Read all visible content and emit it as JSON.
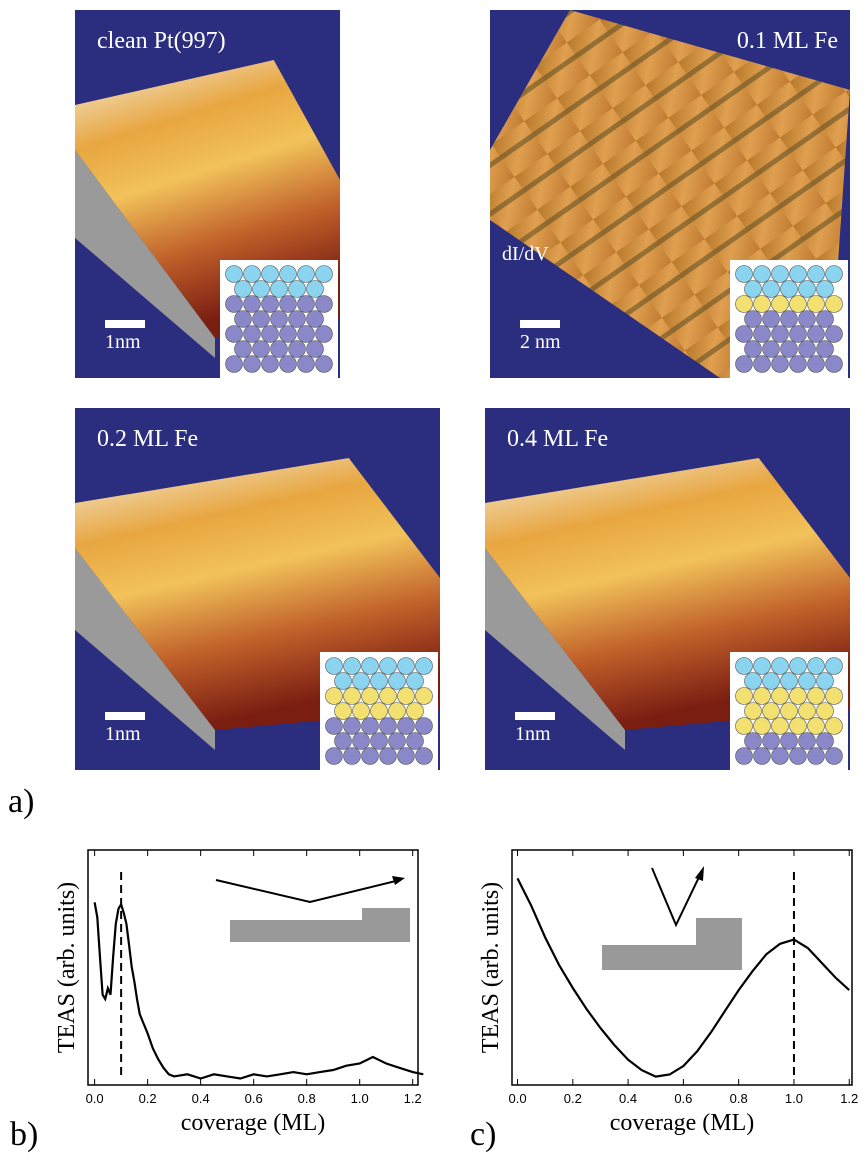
{
  "panel_a": {
    "label": "a)",
    "images": [
      {
        "title": "clean Pt(997)",
        "scale": "1nm"
      },
      {
        "title": "0.1 ML Fe",
        "scale": "2 nm",
        "mode": "dI/dV"
      },
      {
        "title": "0.2 ML Fe",
        "scale": "1nm"
      },
      {
        "title": "0.4 ML Fe",
        "scale": "1nm"
      }
    ]
  },
  "chart_data": [
    {
      "type": "line",
      "panel_label": "b)",
      "xlabel": "coverage (ML)",
      "ylabel": "TEAS (arb. units)",
      "xlim": [
        -0.025,
        1.22
      ],
      "ylim": [
        0,
        1
      ],
      "xticks": [
        {
          "value": 0,
          "label": "0.0"
        },
        0.2,
        0.4,
        0.6,
        0.8,
        {
          "value": 1,
          "label": "1.0"
        },
        1.2
      ],
      "x": [
        0,
        0.01,
        0.02,
        0.03,
        0.04,
        0.05,
        0.06,
        0.07,
        0.08,
        0.09,
        0.1,
        0.11,
        0.12,
        0.13,
        0.14,
        0.15,
        0.16,
        0.17,
        0.18,
        0.19,
        0.2,
        0.22,
        0.24,
        0.26,
        0.28,
        0.3,
        0.35,
        0.4,
        0.45,
        0.5,
        0.55,
        0.6,
        0.65,
        0.7,
        0.75,
        0.8,
        0.85,
        0.9,
        0.95,
        1.0,
        1.05,
        1.1,
        1.15,
        1.2,
        1.24
      ],
      "values": [
        0.85,
        0.78,
        0.6,
        0.42,
        0.4,
        0.45,
        0.42,
        0.6,
        0.75,
        0.82,
        0.84,
        0.8,
        0.75,
        0.65,
        0.55,
        0.48,
        0.4,
        0.33,
        0.3,
        0.27,
        0.24,
        0.17,
        0.12,
        0.08,
        0.05,
        0.04,
        0.05,
        0.03,
        0.05,
        0.04,
        0.03,
        0.05,
        0.04,
        0.05,
        0.06,
        0.05,
        0.06,
        0.07,
        0.09,
        0.1,
        0.13,
        0.1,
        0.08,
        0.06,
        0.05
      ],
      "color": "#000000",
      "vline": 0.1
    },
    {
      "type": "line",
      "panel_label": "c)",
      "xlabel": "coverage (ML)",
      "ylabel": "TEAS (arb. units)",
      "xlim": [
        -0.02,
        1.21
      ],
      "ylim": [
        0,
        1.02
      ],
      "xticks": [
        {
          "value": 0,
          "label": "0.0"
        },
        0.2,
        0.4,
        0.6,
        0.8,
        {
          "value": 1,
          "label": "1.0"
        },
        1.2
      ],
      "x": [
        0,
        0.05,
        0.1,
        0.15,
        0.2,
        0.25,
        0.3,
        0.35,
        0.4,
        0.45,
        0.5,
        0.55,
        0.6,
        0.65,
        0.7,
        0.75,
        0.8,
        0.85,
        0.9,
        0.95,
        1.0,
        1.05,
        1.1,
        1.15,
        1.2
      ],
      "values": [
        0.98,
        0.85,
        0.7,
        0.57,
        0.46,
        0.36,
        0.27,
        0.19,
        0.12,
        0.07,
        0.04,
        0.05,
        0.09,
        0.16,
        0.25,
        0.35,
        0.45,
        0.54,
        0.62,
        0.67,
        0.69,
        0.65,
        0.58,
        0.51,
        0.45
      ],
      "color": "#000000",
      "vline": 1.0
    }
  ]
}
